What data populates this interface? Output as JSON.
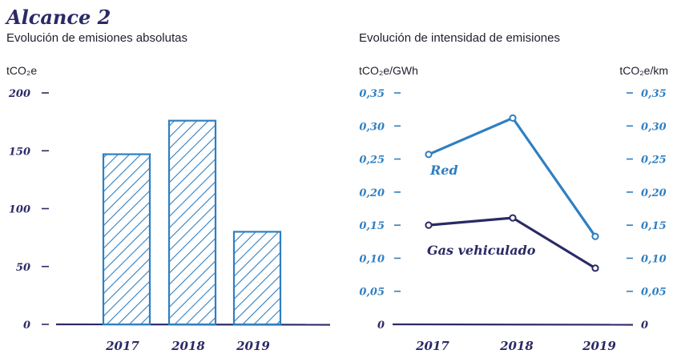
{
  "section_title": "Alcance 2",
  "colors": {
    "navy": "#2b2a66",
    "blue": "#2f7fc1",
    "hatch_blue": "#2f7fc1"
  },
  "chart_data": [
    {
      "type": "bar",
      "title": "Evolución de emisiones absolutas",
      "ylabel": "tCO₂e",
      "ylim": [
        0,
        200
      ],
      "yticks": [
        0,
        50,
        100,
        150,
        200
      ],
      "ytick_labels": [
        "0",
        "50",
        "100",
        "150",
        "200"
      ],
      "categories": [
        "2017",
        "2018",
        "2019"
      ],
      "values": [
        147,
        176,
        80
      ]
    },
    {
      "type": "line",
      "title": "Evolución de intensidad de emisiones",
      "ylabel_left": "tCO₂e/GWh",
      "ylabel_right": "tCO₂e/km",
      "ylim": [
        0,
        0.35
      ],
      "yticks": [
        0,
        0.05,
        0.1,
        0.15,
        0.2,
        0.25,
        0.3,
        0.35
      ],
      "ytick_labels": [
        "0",
        "0,05",
        "0,10",
        "0,15",
        "0,20",
        "0,25",
        "0,30",
        "0,35"
      ],
      "categories": [
        "2017",
        "2018",
        "2019"
      ],
      "series": [
        {
          "name": "Red",
          "color": "#2f7fc1",
          "values": [
            0.257,
            0.312,
            0.133
          ]
        },
        {
          "name": "Gas vehiculado",
          "color": "#2b2a66",
          "values": [
            0.15,
            0.161,
            0.085
          ]
        }
      ]
    }
  ]
}
